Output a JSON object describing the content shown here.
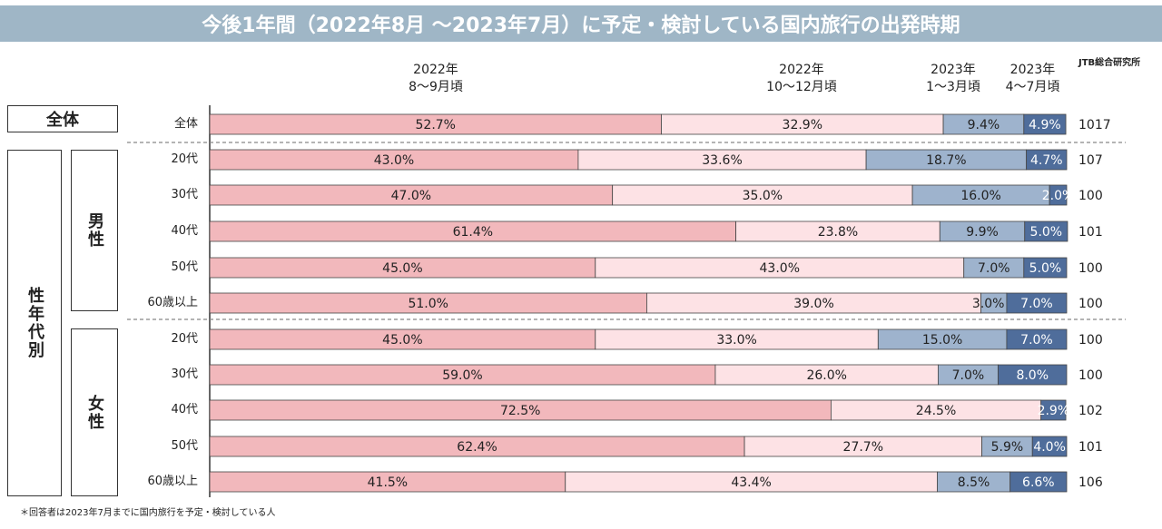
{
  "title": "今後1年間（2022年8月 ～2023年7月）に予定・検討している国内旅行の出発時期",
  "source": "JTB総合研究所",
  "footnote": "＊回答者は2023年7月までに国内旅行を予定・検討している人",
  "group_labels": {
    "overall": "全体",
    "age_gender": "性年代別",
    "male": "男性",
    "female": "女性"
  },
  "colors": {
    "title_bg": "#9fb6c6",
    "seg1": "#f2b8bc",
    "seg2": "#fde2e5",
    "seg3": "#9eb3cd",
    "seg4": "#4f6d9b"
  },
  "chart_data": {
    "type": "bar",
    "stacked": true,
    "orientation": "horizontal",
    "normalized": true,
    "series": [
      {
        "name": "2022年\n8～9月頃",
        "values": [
          52.7,
          43.0,
          47.0,
          61.4,
          45.0,
          51.0,
          45.0,
          59.0,
          72.5,
          62.4,
          41.5
        ]
      },
      {
        "name": "2022年\n10～12月頃",
        "values": [
          32.9,
          33.6,
          35.0,
          23.8,
          43.0,
          39.0,
          33.0,
          26.0,
          24.5,
          27.7,
          43.4
        ]
      },
      {
        "name": "2023年\n1～3月頃",
        "values": [
          9.4,
          18.7,
          16.0,
          9.9,
          7.0,
          3.0,
          15.0,
          7.0,
          0,
          5.9,
          8.5
        ]
      },
      {
        "name": "2023年\n4～7月頃",
        "values": [
          4.9,
          4.7,
          2.0,
          5.0,
          5.0,
          7.0,
          7.0,
          8.0,
          2.9,
          4.0,
          6.6
        ]
      }
    ],
    "categories": [
      "全体",
      "20代",
      "30代",
      "40代",
      "50代",
      "60歳以上",
      "20代",
      "30代",
      "40代",
      "50代",
      "60歳以上"
    ],
    "value_labels": [
      [
        "52.7%",
        "32.9%",
        "9.4%",
        "4.9%"
      ],
      [
        "43.0%",
        "33.6%",
        "18.7%",
        "4.7%"
      ],
      [
        "47.0%",
        "35.0%",
        "16.0%",
        "2.0%"
      ],
      [
        "61.4%",
        "23.8%",
        "9.9%",
        "5.0%"
      ],
      [
        "45.0%",
        "43.0%",
        "7.0%",
        "5.0%"
      ],
      [
        "51.0%",
        "39.0%",
        "3.0%",
        "7.0%"
      ],
      [
        "45.0%",
        "33.0%",
        "15.0%",
        "7.0%"
      ],
      [
        "59.0%",
        "26.0%",
        "7.0%",
        "8.0%"
      ],
      [
        "72.5%",
        "24.5%",
        "",
        "2.9%"
      ],
      [
        "62.4%",
        "27.7%",
        "5.9%",
        "4.0%"
      ],
      [
        "41.5%",
        "43.4%",
        "8.5%",
        "6.6%"
      ]
    ],
    "n": [
      "1017",
      "107",
      "100",
      "101",
      "100",
      "100",
      "100",
      "100",
      "102",
      "101",
      "106"
    ],
    "xlim": [
      0,
      100
    ]
  }
}
